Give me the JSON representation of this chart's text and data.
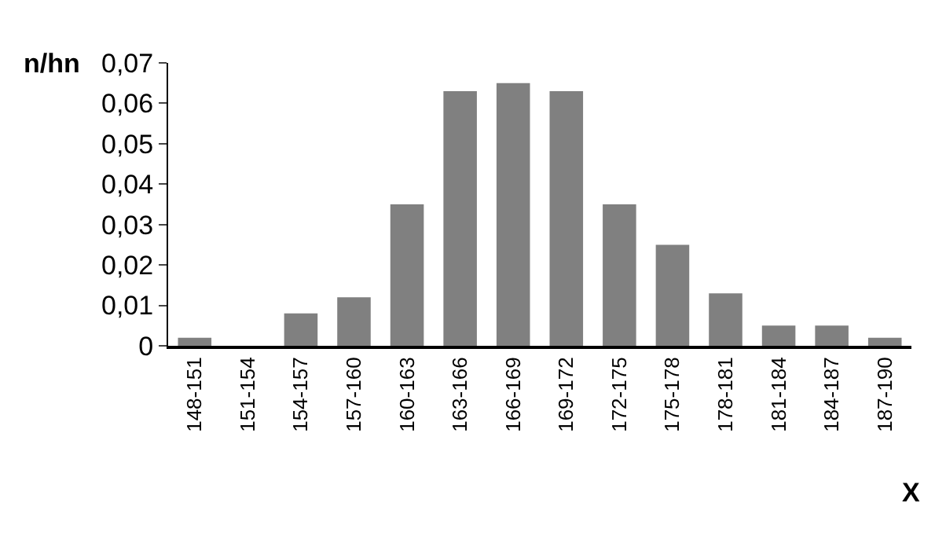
{
  "chart_data": {
    "type": "bar",
    "xlabel": "X",
    "ylabel": "n/hn",
    "categories": [
      "148-151",
      "151-154",
      "154-157",
      "157-160",
      "160-163",
      "163-166",
      "166-169",
      "169-172",
      "172-175",
      "175-178",
      "178-181",
      "181-184",
      "184-187",
      "187-190"
    ],
    "values": [
      0.002,
      0,
      0.008,
      0.012,
      0.035,
      0.063,
      0.065,
      0.063,
      0.035,
      0.025,
      0.013,
      0.005,
      0.005,
      0.002
    ],
    "color": "#808080",
    "ylim": [
      0,
      0.07
    ],
    "yticks": [
      0,
      {
        "value": 0.01,
        "label": "0,01"
      },
      {
        "value": 0.02,
        "label": "0,02"
      },
      {
        "value": 0.03,
        "label": "0,03"
      },
      {
        "value": 0.04,
        "label": "0,04"
      },
      {
        "value": 0.05,
        "label": "0,05"
      },
      {
        "value": 0.06,
        "label": "0,06"
      },
      {
        "value": 0.07,
        "label": "0,07"
      }
    ],
    "legend": false
  }
}
